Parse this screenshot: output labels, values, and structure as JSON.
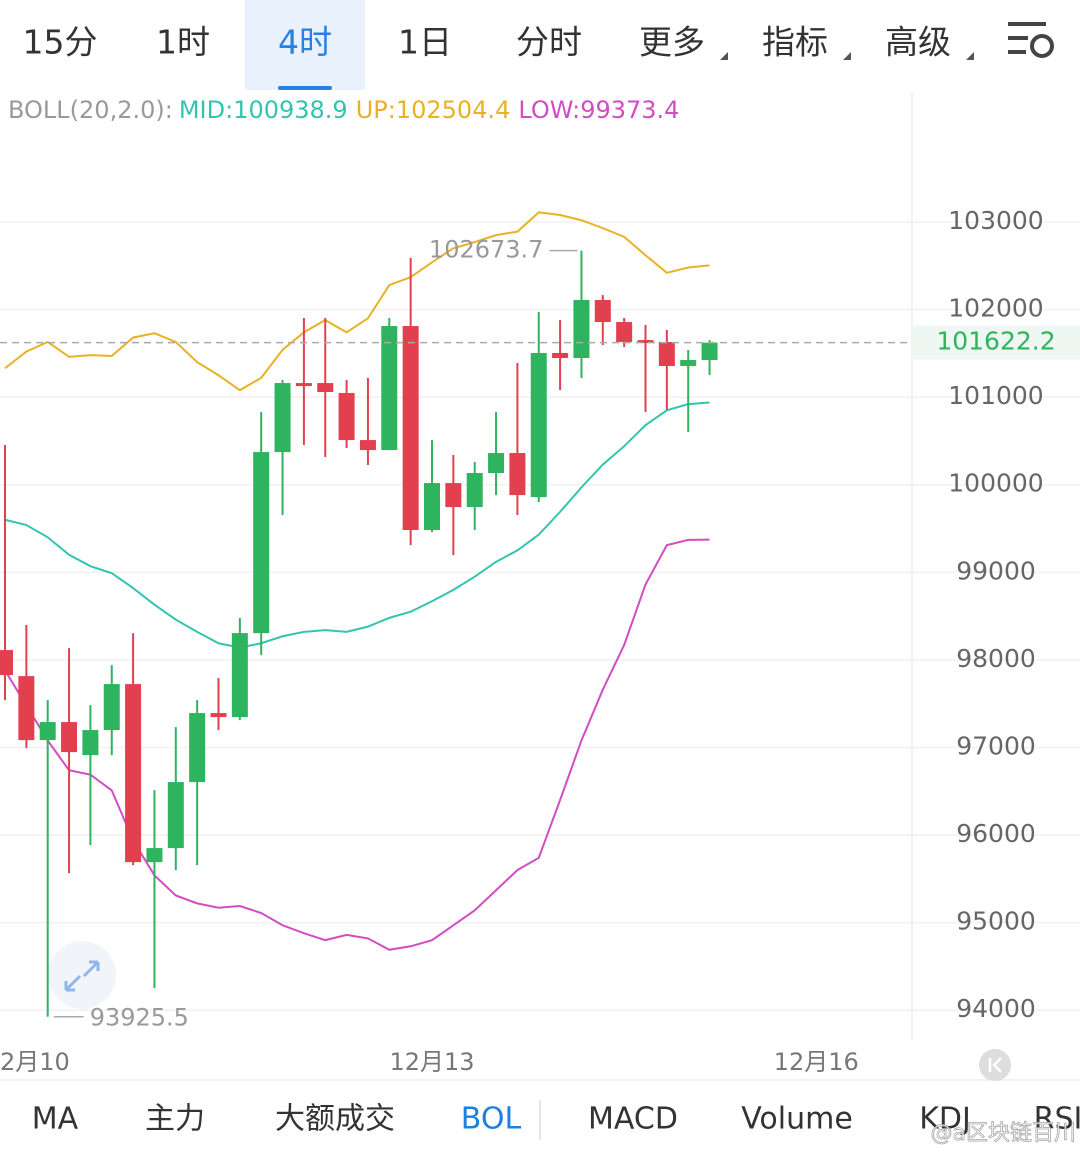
{
  "tabs": [
    "15分",
    "1时",
    "4时",
    "1日",
    "分时",
    "更多",
    "指标",
    "高级"
  ],
  "active_tab": 2,
  "chart_data": {
    "type": "candlestick",
    "indicator": "BOLL(20,2.0):",
    "separator": ":",
    "categories": [
      null,
      null,
      null,
      null,
      null,
      null,
      null,
      null,
      null,
      null,
      null,
      null,
      null,
      null,
      null,
      null,
      null,
      null,
      null,
      null,
      null,
      null,
      null,
      null,
      null,
      null,
      null,
      null,
      null,
      null,
      null,
      null,
      null,
      null
    ],
    "candles": {
      "color_up": "#2eb35e",
      "color_down": "#e2404f",
      "open": [
        98112,
        97815,
        97084,
        97290,
        96913,
        97199,
        97724,
        95691,
        95851,
        96605,
        97393,
        97347,
        98306,
        100373,
        101161,
        101161,
        101047,
        100510,
        100396,
        101812,
        99483,
        100019,
        99745,
        100134,
        100362,
        99859,
        101504,
        101447,
        102109,
        101858,
        101652,
        101630,
        101356,
        101424
      ],
      "high": [
        100453,
        98398,
        97541,
        98135,
        97484,
        97941,
        98306,
        96513,
        97233,
        97541,
        97792,
        98478,
        100830,
        101196,
        101904,
        101904,
        101196,
        101218,
        101904,
        102589,
        100510,
        100339,
        100259,
        100830,
        101390,
        101972,
        101881,
        102673.7,
        102166,
        101904,
        101824,
        101767,
        101538,
        101652
      ],
      "low": [
        97541,
        96993,
        93925.5,
        95566,
        95885,
        96913,
        95657,
        94252,
        95600,
        95657,
        97199,
        97313,
        98055,
        99654,
        100453,
        100316,
        100419,
        100225,
        100396,
        99311,
        99460,
        99197,
        99483,
        99882,
        99654,
        99802,
        101081,
        101218,
        101595,
        101572,
        100830,
        100853,
        100602,
        101253
      ],
      "close": [
        97827,
        97084,
        97290,
        96947,
        97199,
        97724,
        95691,
        95851,
        96605,
        97393,
        97347,
        98306,
        100373,
        101161,
        101127,
        101059,
        100510,
        100396,
        101812,
        99483,
        100019,
        99745,
        100134,
        100362,
        99882,
        101504,
        101447,
        102109,
        101858,
        101630,
        101618,
        101356,
        101424,
        101622.2
      ]
    },
    "series": [
      {
        "name": "MID",
        "color": "#33c4b0",
        "values": [
          99600,
          99540,
          99400,
          99200,
          99070,
          98990,
          98820,
          98630,
          98460,
          98320,
          98190,
          98140,
          98190,
          98270,
          98320,
          98340,
          98320,
          98380,
          98480,
          98550,
          98670,
          98800,
          98950,
          99120,
          99250,
          99430,
          99690,
          99970,
          100230,
          100440,
          100680,
          100850,
          100920,
          100938.9
        ]
      },
      {
        "name": "UP",
        "color": "#e8b224",
        "values": [
          101330,
          101520,
          101630,
          101460,
          101480,
          101470,
          101680,
          101730,
          101630,
          101400,
          101250,
          101080,
          101220,
          101540,
          101740,
          101880,
          101740,
          101900,
          102280,
          102370,
          102540,
          102700,
          102770,
          102850,
          102890,
          103110,
          103080,
          103020,
          102930,
          102830,
          102620,
          102420,
          102480,
          102504.4
        ]
      },
      {
        "name": "LOW",
        "color": "#d24cc2",
        "values": [
          97880,
          97480,
          97080,
          96740,
          96690,
          96510,
          95940,
          95540,
          95310,
          95220,
          95170,
          95190,
          95110,
          94970,
          94880,
          94800,
          94860,
          94820,
          94690,
          94730,
          94800,
          94970,
          95140,
          95370,
          95600,
          95740,
          96400,
          97080,
          97660,
          98170,
          98860,
          99310,
          99370,
          99373.4
        ]
      }
    ],
    "xticks": [
      {
        "value": 2,
        "label": "2月10"
      },
      {
        "value": 20,
        "label": "12月13"
      },
      {
        "value": 38,
        "label": "12月16"
      }
    ],
    "ylim": [
      93660,
      104450
    ],
    "yticks": [
      94000,
      95000,
      96000,
      97000,
      98000,
      99000,
      100000,
      101000,
      102000,
      103000
    ],
    "grid": true,
    "last_price_line": true
  },
  "bottom_tabs": [
    "MA",
    "主力",
    "大额成交",
    "BOL",
    "MACD",
    "Volume",
    "KDJ",
    "RSI"
  ],
  "active_bottom_tab": 3,
  "watermark": "@a区块链百川"
}
